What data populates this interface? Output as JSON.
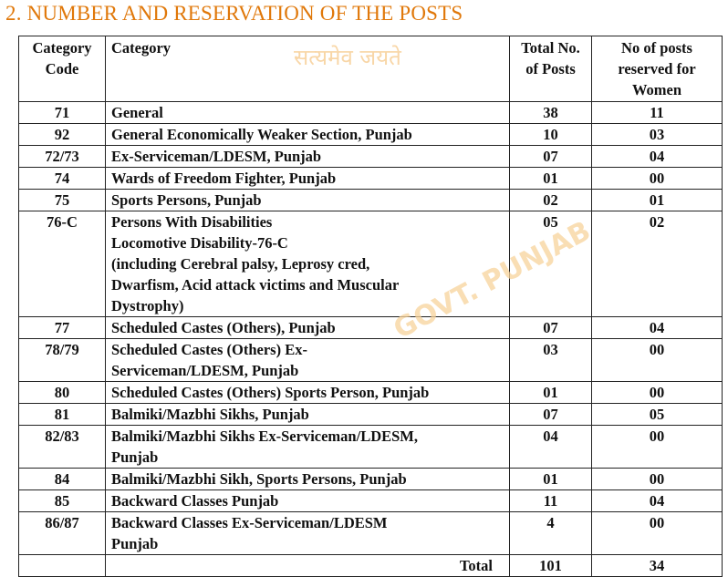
{
  "heading": "2. NUMBER AND RESERVATION OF THE POSTS",
  "watermark": [
    "सत्यमेव जयते",
    "GOVT. PUNJAB"
  ],
  "table": {
    "headers": [
      "Category\nCode",
      "Category",
      "Total No.\nof Posts",
      "No of  posts\nreserved for\nWomen"
    ],
    "rows": [
      [
        "71",
        "General",
        "38",
        "11"
      ],
      [
        "92",
        "General Economically Weaker Section, Punjab",
        "10",
        "03"
      ],
      [
        "72/73",
        "Ex-Serviceman/LDESM, Punjab",
        "07",
        "04"
      ],
      [
        "74",
        "Wards of Freedom Fighter, Punjab",
        "01",
        "00"
      ],
      [
        "75",
        "Sports Persons, Punjab",
        "02",
        "01"
      ],
      [
        "76-C",
        "Persons With Disabilities\nLocomotive Disability-76-C\n(including Cerebral palsy, Leprosy cred,\nDwarfism, Acid attack victims and Muscular\nDystrophy)",
        "05",
        "02"
      ],
      [
        "77",
        "Scheduled Castes (Others), Punjab",
        "07",
        "04"
      ],
      [
        "78/79",
        "Scheduled Castes (Others) Ex-\nServiceman/LDESM, Punjab",
        "03",
        "00"
      ],
      [
        "80",
        "Scheduled Castes (Others) Sports Person, Punjab",
        "01",
        "00"
      ],
      [
        "81",
        "Balmiki/Mazbhi Sikhs, Punjab",
        "07",
        "05"
      ],
      [
        "82/83",
        "Balmiki/Mazbhi Sikhs Ex-Serviceman/LDESM,\nPunjab",
        "04",
        "00"
      ],
      [
        "84",
        "Balmiki/Mazbhi Sikh, Sports Persons, Punjab",
        "01",
        "00"
      ],
      [
        "85",
        "Backward Classes Punjab",
        "11",
        "04"
      ],
      [
        "86/87",
        "Backward Classes Ex-Serviceman/LDESM\nPunjab",
        "4",
        "00"
      ]
    ],
    "total": {
      "label": "Total",
      "posts": "101",
      "women": "34"
    }
  }
}
